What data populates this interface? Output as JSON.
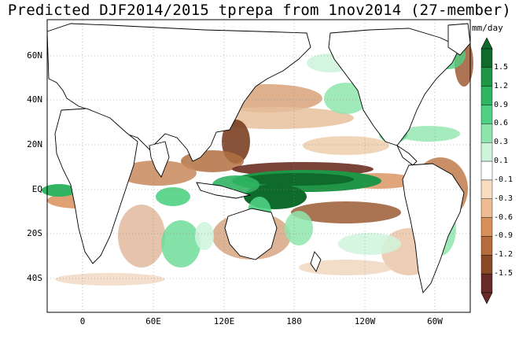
{
  "title": "Predicted DJF2014/2015 tprepa from 1nov2014 (27-member)",
  "units": "mm/day",
  "lat_labels": [
    "60N",
    "40N",
    "20N",
    "EQ",
    "20S",
    "40S"
  ],
  "lon_labels": [
    "0",
    "60E",
    "120E",
    "180",
    "120W",
    "60W"
  ],
  "colorbar": {
    "levels": [
      "1.5",
      "1.2",
      "0.9",
      "0.6",
      "0.3",
      "0.1",
      "-0.1",
      "-0.3",
      "-0.6",
      "-0.9",
      "-1.2",
      "-1.5"
    ],
    "colors": [
      "#0f6b2c",
      "#1f9645",
      "#2fb562",
      "#4fd183",
      "#8fe6ad",
      "#cff4dc",
      "#ffffff",
      "#f8dcc0",
      "#eebb92",
      "#d98f5a",
      "#b56c3a",
      "#8a4a26",
      "#6a2a2a"
    ]
  },
  "map": {
    "land_color": "#ffffff",
    "wet_color": "#2fb562",
    "dry_color": "#b27042",
    "grid": "dotted",
    "lon_range": "30W to 90W (0-centered, 180 at center)",
    "lat_range": "55S to 75N"
  }
}
